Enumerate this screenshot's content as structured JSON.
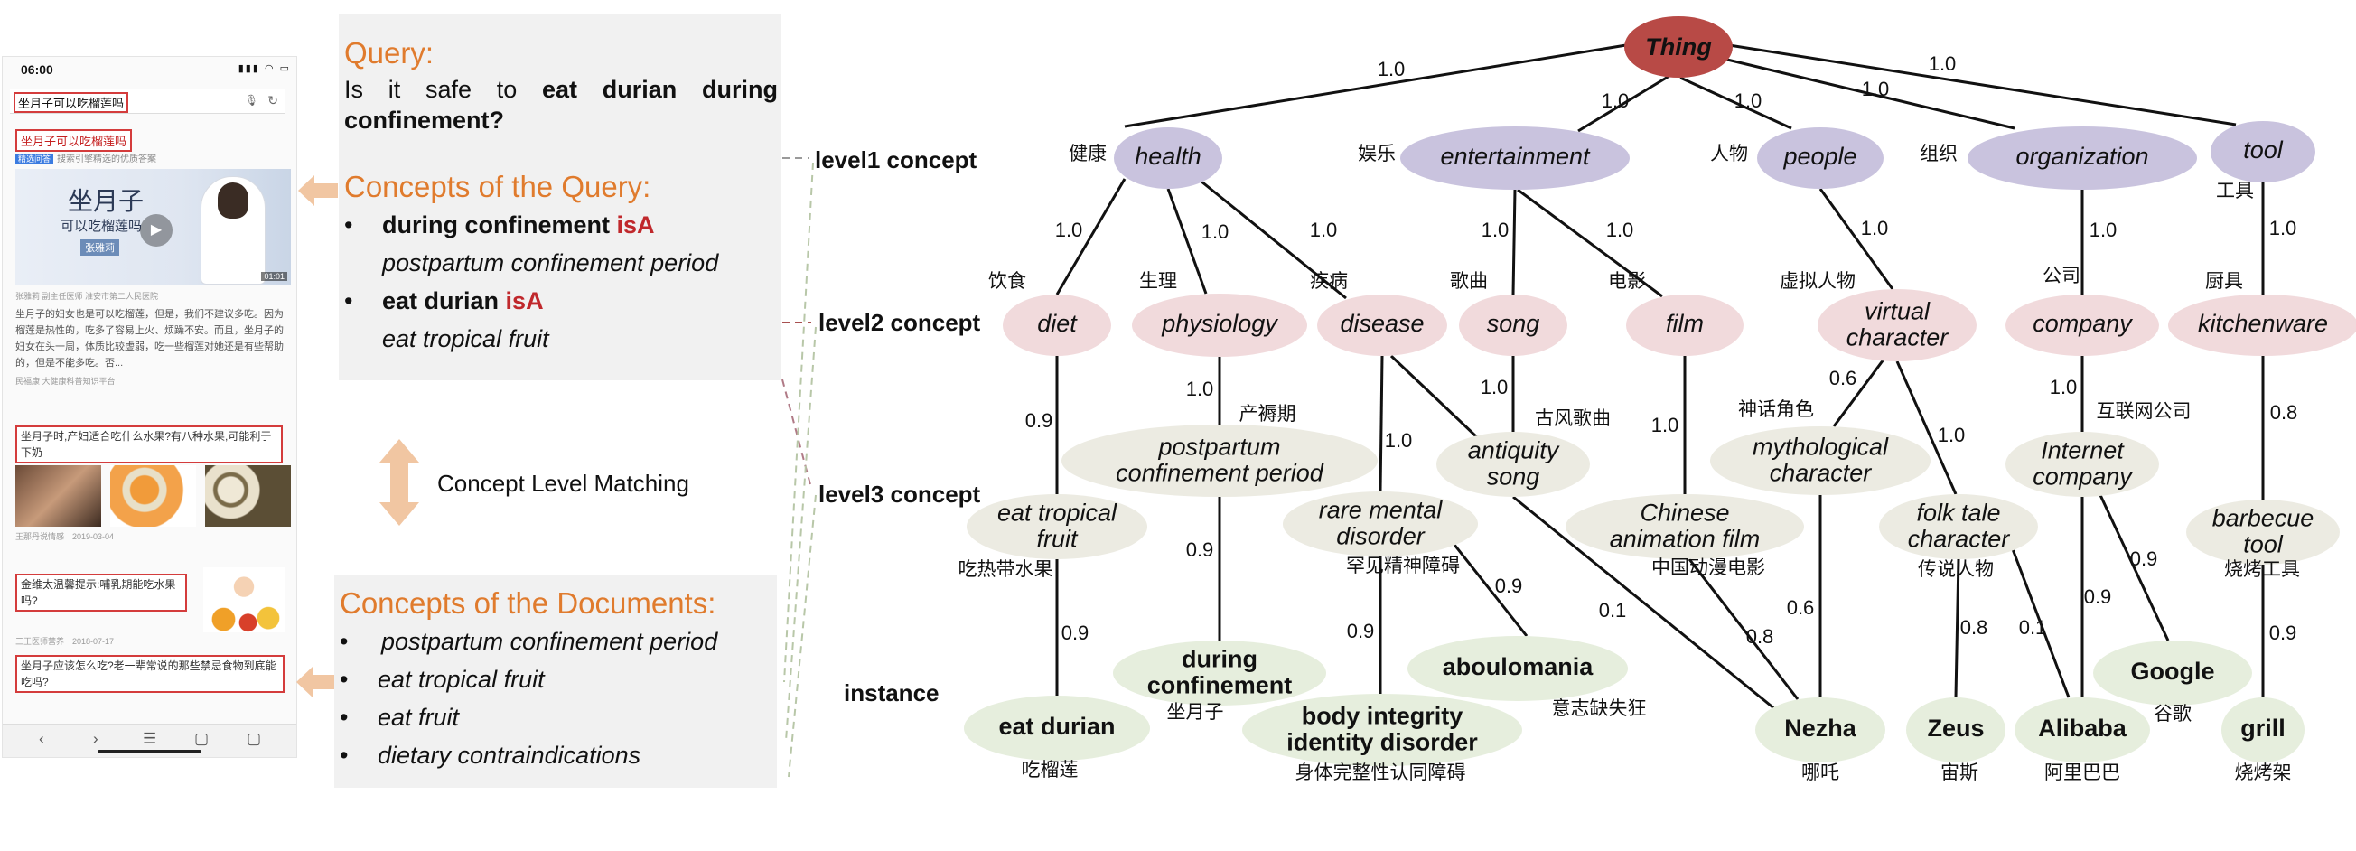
{
  "phone": {
    "status_time": "06:00",
    "search_query": "坐月子可以吃榴莲吗",
    "result1_title": "坐月子可以吃榴莲吗",
    "result1_subtitle": "搜索引擎精选的优质答案",
    "result1_tag": "精选问答",
    "video_title": "坐月子",
    "video_subtitle": "可以吃榴莲吗",
    "video_doctor": "张雅莉",
    "video_duration": "01:01",
    "result1_author": "张雅莉 副主任医师 淮安市第二人民医院",
    "result1_excerpt": "坐月子的妇女也是可以吃榴莲，但是，我们不建议多吃。因为榴莲是热性的，吃多了容易上火、烦躁不安。而且，坐月子的妇女在头一周，体质比较虚弱，吃一些榴莲对她还是有些帮助的，但是不能多吃。否...",
    "result1_source": "民福康 大健康科普知识平台",
    "result2_title": "坐月子时,产妇适合吃什么水果?有八种水果,可能利于下奶",
    "result2_meta": "王那丹说情感　2019-03-04",
    "result3_title": "金维太温馨提示:哺乳期能吃水果吗?",
    "result3_meta": "三王医师营养　2018-07-17",
    "result4_title": "坐月子应该怎么吃?老一辈常说的那些禁忌食物到底能吃吗?",
    "nav_icons": [
      "‹",
      "›",
      "☰",
      "▢",
      "▢"
    ]
  },
  "query_panel": {
    "heading": "Query:",
    "text_prefix": "Is it safe to ",
    "text_bold": "eat durian during confinement?",
    "concepts_heading": "Concepts of the Query:",
    "items": [
      {
        "subject": "during confinement",
        "relation": "isA",
        "object": "postpartum confinement period"
      },
      {
        "subject": "eat durian",
        "relation": "isA",
        "object": "eat tropical fruit"
      }
    ]
  },
  "docs_panel": {
    "heading": "Concepts of the Documents:",
    "items": [
      "postpartum confinement period",
      "eat tropical fruit",
      "eat fruit",
      "dietary contraindications"
    ]
  },
  "matching_label": "Concept Level Matching",
  "levels": {
    "level1": "level1 concept",
    "level2": "level2 concept",
    "level3": "level3 concept",
    "instance": "instance"
  },
  "colors": {
    "root": "#b84a46",
    "level1": "#c9c3de",
    "level2": "#f1dadc",
    "level3": "#ecebe2",
    "instance": "#e6eedd",
    "arrow": "#f1c6a2",
    "orange": "#e07b2d",
    "red": "#c0282c"
  },
  "tree": {
    "root": "Thing",
    "level1": [
      {
        "id": "health",
        "label": "health",
        "zh": "健康"
      },
      {
        "id": "entertainment",
        "label": "entertainment",
        "zh": "娱乐"
      },
      {
        "id": "people",
        "label": "people",
        "zh": "人物"
      },
      {
        "id": "organization",
        "label": "organization",
        "zh": "组织"
      },
      {
        "id": "tool",
        "label": "tool",
        "zh": "工具"
      }
    ],
    "level2": [
      {
        "id": "diet",
        "label": "diet",
        "zh": "饮食"
      },
      {
        "id": "physiology",
        "label": "physiology",
        "zh": "生理"
      },
      {
        "id": "disease",
        "label": "disease",
        "zh": "疾病"
      },
      {
        "id": "song",
        "label": "song",
        "zh": "歌曲"
      },
      {
        "id": "film",
        "label": "film",
        "zh": "电影"
      },
      {
        "id": "virtual_character",
        "label": "virtual\ncharacter",
        "zh": "虚拟人物"
      },
      {
        "id": "company",
        "label": "company",
        "zh": "公司"
      },
      {
        "id": "kitchenware",
        "label": "kitchenware",
        "zh": "厨具"
      }
    ],
    "level3": [
      {
        "id": "eat_tropical_fruit",
        "label": "eat tropical\nfruit",
        "zh": "吃热带水果"
      },
      {
        "id": "postpartum",
        "label": "postpartum\nconfinement period",
        "zh": "产褥期"
      },
      {
        "id": "rare_mental",
        "label": "rare mental\ndisorder",
        "zh": "罕见精神障碍"
      },
      {
        "id": "antiquity_song",
        "label": "antiquity\nsong",
        "zh": "古风歌曲"
      },
      {
        "id": "chinese_animation",
        "label": "Chinese\nanimation film",
        "zh": "中国动漫电影"
      },
      {
        "id": "mythological",
        "label": "mythological\ncharacter",
        "zh": "神话角色"
      },
      {
        "id": "folk_tale",
        "label": "folk tale\ncharacter",
        "zh": "传说人物"
      },
      {
        "id": "internet_company",
        "label": "Internet\ncompany",
        "zh": "互联网公司"
      },
      {
        "id": "barbecue_tool",
        "label": "barbecue\ntool",
        "zh": "烧烤工具"
      }
    ],
    "instances": [
      {
        "id": "eat_durian",
        "label": "eat durian",
        "zh": "吃榴莲"
      },
      {
        "id": "during_confinement",
        "label": "during\nconfinement",
        "zh": "坐月子"
      },
      {
        "id": "body_integrity",
        "label": "body integrity\nidentity disorder",
        "zh": "身体完整性认同障碍"
      },
      {
        "id": "aboulomania",
        "label": "aboulomania",
        "zh": "意志缺失狂"
      },
      {
        "id": "nezha",
        "label": "Nezha",
        "zh": "哪吒"
      },
      {
        "id": "zeus",
        "label": "Zeus",
        "zh": "宙斯"
      },
      {
        "id": "alibaba",
        "label": "Alibaba",
        "zh": "阿里巴巴"
      },
      {
        "id": "google",
        "label": "Google",
        "zh": "谷歌"
      },
      {
        "id": "grill",
        "label": "grill",
        "zh": "烧烤架"
      }
    ],
    "edges": [
      {
        "from": "Thing",
        "to": "health",
        "w": "1.0"
      },
      {
        "from": "Thing",
        "to": "entertainment",
        "w": "1.0"
      },
      {
        "from": "Thing",
        "to": "people",
        "w": "1.0"
      },
      {
        "from": "Thing",
        "to": "organization",
        "w": "1.0"
      },
      {
        "from": "Thing",
        "to": "tool",
        "w": "1.0"
      },
      {
        "from": "health",
        "to": "diet",
        "w": "1.0"
      },
      {
        "from": "health",
        "to": "physiology",
        "w": "1.0"
      },
      {
        "from": "health",
        "to": "disease",
        "w": "1.0"
      },
      {
        "from": "entertainment",
        "to": "song",
        "w": "1.0"
      },
      {
        "from": "entertainment",
        "to": "film",
        "w": "1.0"
      },
      {
        "from": "people",
        "to": "virtual_character",
        "w": "1.0"
      },
      {
        "from": "organization",
        "to": "company",
        "w": "1.0"
      },
      {
        "from": "tool",
        "to": "kitchenware",
        "w": "1.0"
      },
      {
        "from": "diet",
        "to": "eat_tropical_fruit",
        "w": "0.9"
      },
      {
        "from": "physiology",
        "to": "postpartum",
        "w": "1.0"
      },
      {
        "from": "disease",
        "to": "rare_mental",
        "w": "1.0"
      },
      {
        "from": "disease",
        "to": "antiquity_song",
        "w": ""
      },
      {
        "from": "song",
        "to": "antiquity_song",
        "w": "1.0"
      },
      {
        "from": "film",
        "to": "chinese_animation",
        "w": "1.0"
      },
      {
        "from": "virtual_character",
        "to": "mythological",
        "w": "0.6"
      },
      {
        "from": "virtual_character",
        "to": "folk_tale",
        "w": "1.0"
      },
      {
        "from": "company",
        "to": "internet_company",
        "w": "1.0"
      },
      {
        "from": "kitchenware",
        "to": "barbecue_tool",
        "w": "0.8"
      },
      {
        "from": "eat_tropical_fruit",
        "to": "eat_durian",
        "w": "0.9"
      },
      {
        "from": "postpartum",
        "to": "during_confinement",
        "w": "0.9"
      },
      {
        "from": "rare_mental",
        "to": "body_integrity",
        "w": "0.9"
      },
      {
        "from": "rare_mental",
        "to": "aboulomania",
        "w": "0.9"
      },
      {
        "from": "antiquity_song",
        "to": "nezha",
        "w": "0.1"
      },
      {
        "from": "chinese_animation",
        "to": "nezha",
        "w": "0.8"
      },
      {
        "from": "mythological",
        "to": "nezha",
        "w": "0.6"
      },
      {
        "from": "folk_tale",
        "to": "zeus",
        "w": "0.8"
      },
      {
        "from": "folk_tale",
        "to": "alibaba",
        "w": "0.1"
      },
      {
        "from": "internet_company",
        "to": "alibaba",
        "w": "0.9"
      },
      {
        "from": "internet_company",
        "to": "google",
        "w": "0.9"
      },
      {
        "from": "barbecue_tool",
        "to": "grill",
        "w": "0.9"
      }
    ]
  }
}
